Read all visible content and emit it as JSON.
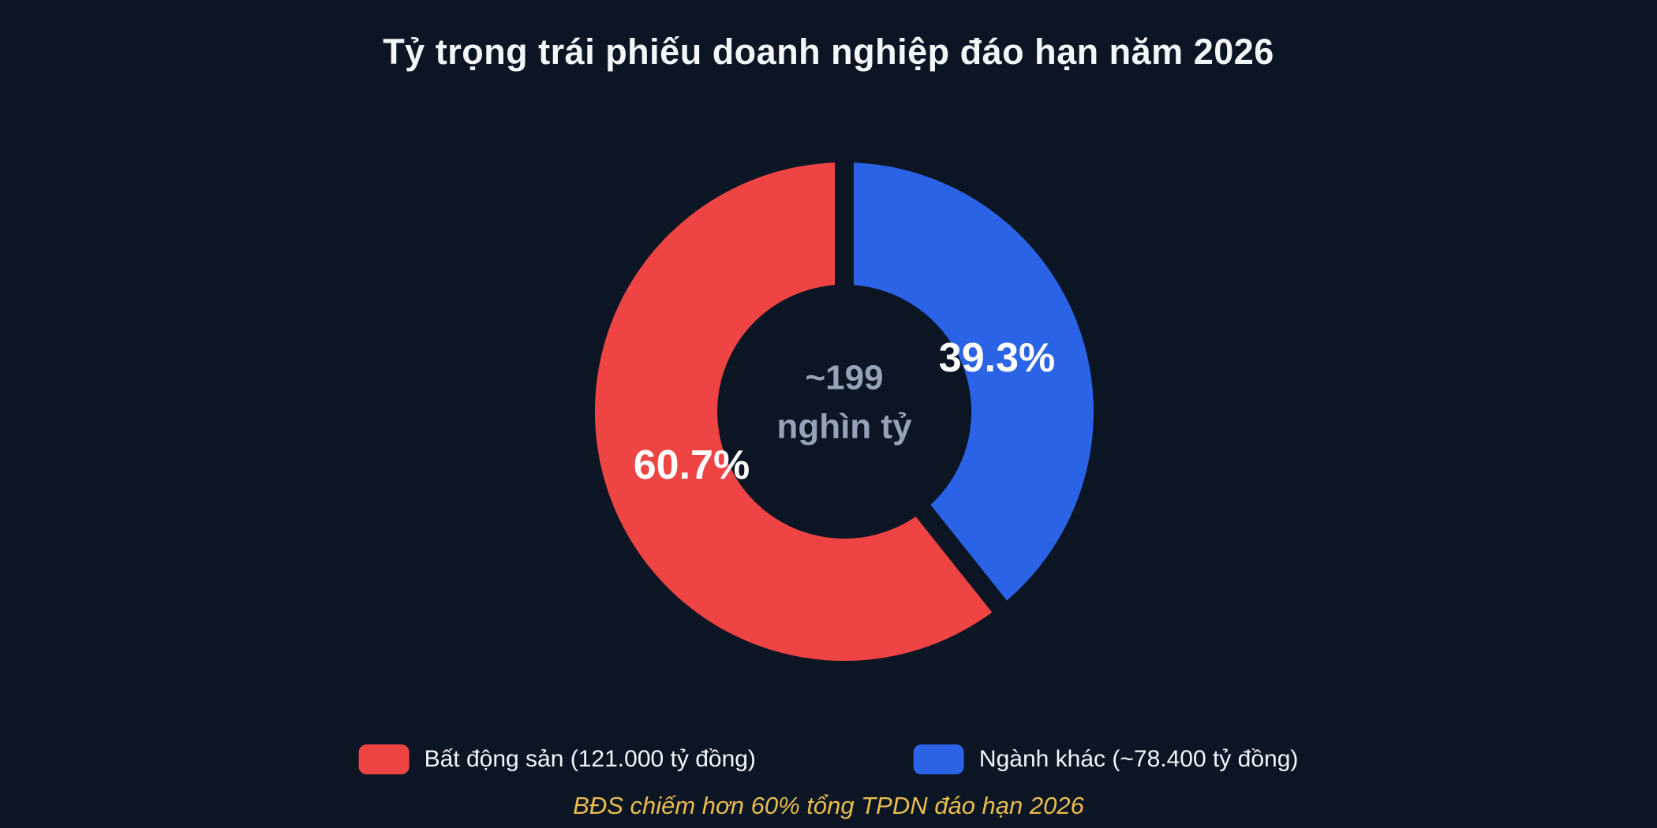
{
  "page": {
    "background": "#0c1524",
    "title": "Tỷ trọng trái phiếu doanh nghiệp đáo hạn năm 2026",
    "footnote": "BĐS chiếm hơn 60% tổng TPDN đáo hạn 2026",
    "footnote_color": "#e9bd4c"
  },
  "chart_data": {
    "type": "pie",
    "variant": "donut",
    "title": "Tỷ trọng trái phiếu doanh nghiệp đáo hạn năm 2026",
    "legend_position": "bottom",
    "center_label": {
      "line1": "~199",
      "line2": "nghìn tỷ",
      "color": "#94a3b8"
    },
    "series": [
      {
        "name": "Bất động sản",
        "pct": 60.7,
        "pct_label": "60.7%",
        "amount_label": "121.000 tỷ đồng",
        "legend_label": "Bất động sản (121.000 tỷ đồng)",
        "color": "#ef4444"
      },
      {
        "name": "Ngành khác",
        "pct": 39.3,
        "pct_label": "39.3%",
        "amount_label": "~78.400 tỷ đồng",
        "legend_label": "Ngành khác (~78.400 tỷ đồng)",
        "color": "#2b63e7"
      }
    ],
    "annotation": "BĐS chiếm hơn 60% tổng TPDN đáo hạn 2026"
  }
}
